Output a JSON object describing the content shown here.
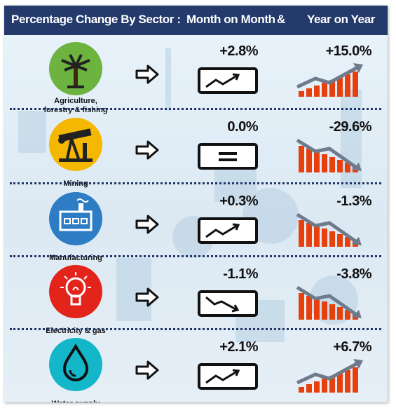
{
  "header": {
    "sector_title": "Percentage Change By Sector :",
    "month_on_month": "Month on Month",
    "ampersand": "&",
    "year_on_year": "Year on Year"
  },
  "colors": {
    "header_bg": "#243a6b",
    "bar_red": "#e8400c",
    "arrow_grey": "#6f7a8c",
    "agriculture": "#6db33f",
    "mining": "#f5b800",
    "manufacturing": "#2d7cc4",
    "electricity": "#e3241b",
    "water": "#14b6c9"
  },
  "sectors": [
    {
      "name": "Agriculture,\nforestry & fishing",
      "icon": "palm-tree-icon",
      "mom": "+2.8%",
      "mom_trend": "up",
      "yoy": "+15.0%",
      "yoy_trend": "up"
    },
    {
      "name": "Mining",
      "icon": "oil-pump-icon",
      "mom": "0.0%",
      "mom_trend": "flat",
      "yoy": "-29.6%",
      "yoy_trend": "down"
    },
    {
      "name": "Manufacturing",
      "icon": "factory-icon",
      "mom": "+0.3%",
      "mom_trend": "up",
      "yoy": "-1.3%",
      "yoy_trend": "down"
    },
    {
      "name": "Electricity & gas",
      "icon": "light-bulb-icon",
      "mom": "-1.1%",
      "mom_trend": "down",
      "yoy": "-3.8%",
      "yoy_trend": "down"
    },
    {
      "name": "Water supply",
      "icon": "water-drop-icon",
      "mom": "+2.1%",
      "mom_trend": "up",
      "yoy": "+6.7%",
      "yoy_trend": "up"
    }
  ]
}
